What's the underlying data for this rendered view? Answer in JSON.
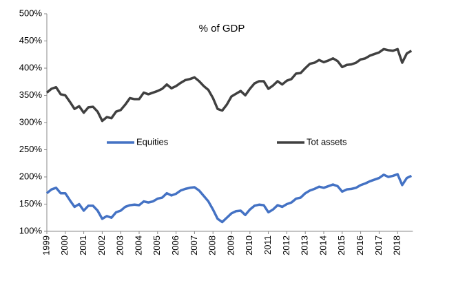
{
  "chart_data": {
    "type": "line",
    "title": "% of GDP",
    "categories": [
      "1999",
      null,
      null,
      null,
      "2000",
      null,
      null,
      null,
      "2001",
      null,
      null,
      null,
      "2002",
      null,
      null,
      null,
      "2003",
      null,
      null,
      null,
      "2004",
      null,
      null,
      null,
      "2005",
      null,
      null,
      null,
      "2006",
      null,
      null,
      null,
      "2007",
      null,
      null,
      null,
      "2008",
      null,
      null,
      null,
      "2009",
      null,
      null,
      null,
      "2010",
      null,
      null,
      null,
      "2011",
      null,
      null,
      null,
      "2012",
      null,
      null,
      null,
      "2013",
      null,
      null,
      null,
      "2014",
      null,
      null,
      null,
      "2015",
      null,
      null,
      null,
      "2016",
      null,
      null,
      null,
      "2017",
      null,
      null,
      null,
      "2018",
      null,
      null,
      null
    ],
    "series": [
      {
        "name": "Equities",
        "color": "#4472c4",
        "values": [
          170,
          177,
          180,
          170,
          170,
          157,
          145,
          150,
          138,
          147,
          147,
          138,
          123,
          128,
          125,
          135,
          138,
          145,
          148,
          149,
          148,
          155,
          153,
          155,
          160,
          162,
          170,
          166,
          169,
          175,
          178,
          180,
          181,
          175,
          165,
          155,
          140,
          123,
          117,
          125,
          133,
          137,
          138,
          130,
          140,
          147,
          149,
          148,
          135,
          140,
          148,
          145,
          150,
          153,
          160,
          162,
          170,
          175,
          178,
          182,
          180,
          183,
          186,
          183,
          173,
          177,
          178,
          180,
          185,
          188,
          192,
          195,
          198,
          204,
          200,
          202,
          205,
          185,
          198,
          202
        ]
      },
      {
        "name": "Tot assets",
        "color": "#404040",
        "values": [
          355,
          362,
          365,
          352,
          350,
          338,
          325,
          330,
          318,
          328,
          329,
          320,
          303,
          310,
          308,
          320,
          323,
          333,
          345,
          343,
          343,
          355,
          352,
          355,
          358,
          362,
          370,
          363,
          367,
          373,
          378,
          380,
          383,
          376,
          367,
          360,
          345,
          325,
          322,
          333,
          348,
          353,
          358,
          350,
          362,
          372,
          376,
          376,
          362,
          368,
          376,
          370,
          377,
          380,
          390,
          391,
          400,
          408,
          410,
          415,
          411,
          414,
          418,
          413,
          402,
          406,
          407,
          410,
          416,
          418,
          423,
          426,
          429,
          435,
          433,
          432,
          435,
          410,
          427,
          432
        ]
      }
    ],
    "ylim": [
      100,
      500
    ],
    "yticks": [
      {
        "value": 100,
        "label": "100%"
      },
      {
        "value": 150,
        "label": "150%"
      },
      {
        "value": 200,
        "label": "200%"
      },
      {
        "value": 250,
        "label": "250%"
      },
      {
        "value": 300,
        "label": "300%"
      },
      {
        "value": 350,
        "label": "350%"
      },
      {
        "value": 400,
        "label": "400%"
      },
      {
        "value": 450,
        "label": "450%"
      },
      {
        "value": 500,
        "label": "500%"
      }
    ],
    "grid": false
  }
}
